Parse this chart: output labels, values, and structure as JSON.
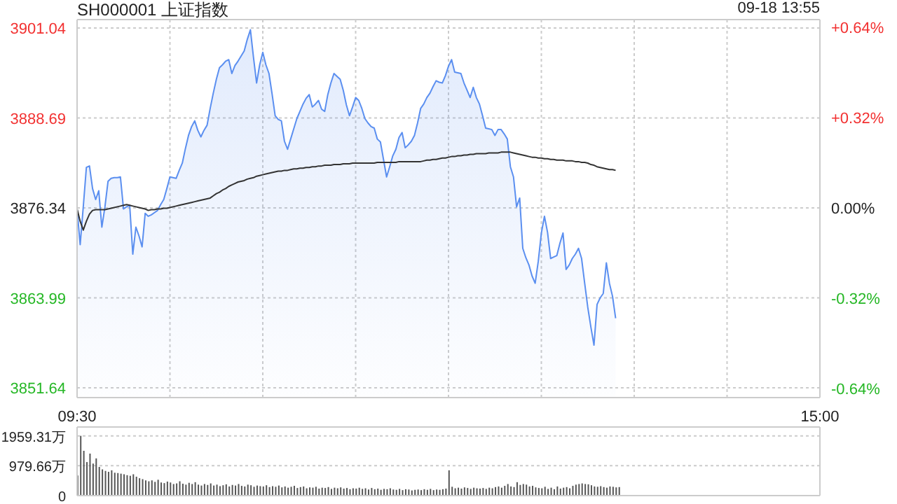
{
  "chart_data": [
    {
      "type": "area",
      "title": "SH000001 上证指数",
      "annotations": [
        "09-18 13:55"
      ],
      "grid": true,
      "categories": [
        "09:30",
        null,
        null,
        null,
        null,
        null,
        null,
        null,
        null,
        null,
        null,
        null,
        null,
        null,
        null,
        null,
        null,
        null,
        null,
        null,
        null,
        null,
        null,
        null,
        null,
        null,
        null,
        null,
        null,
        null,
        null,
        null,
        null,
        null,
        null,
        null,
        null,
        null,
        null,
        null,
        null,
        null,
        null,
        null,
        null,
        null,
        null,
        null,
        null,
        null,
        null,
        null,
        null,
        null,
        null,
        null,
        null,
        null,
        null,
        null,
        null,
        null,
        null,
        null,
        null,
        null,
        null,
        null,
        null,
        null,
        null,
        null,
        null,
        null,
        null,
        null,
        null,
        null,
        null,
        null,
        null,
        null,
        null,
        null,
        null,
        null,
        null,
        null,
        null,
        null,
        null,
        null,
        null,
        null,
        null,
        null,
        null,
        null,
        null,
        null,
        null,
        null,
        null,
        null,
        null,
        null,
        null,
        null,
        null,
        null,
        null,
        null,
        null,
        null,
        null,
        null,
        null,
        null,
        null,
        null,
        null,
        null,
        null,
        null,
        null,
        null,
        null,
        null,
        null,
        null,
        null,
        null,
        null,
        null,
        null,
        null,
        null,
        null,
        null,
        null,
        null,
        null,
        null,
        null,
        null,
        null,
        null,
        null,
        null,
        null,
        null,
        null,
        null,
        null,
        null,
        null,
        null,
        null,
        null,
        null,
        null,
        null,
        null,
        null,
        null,
        null,
        null,
        null,
        null,
        null,
        null,
        null,
        null,
        null,
        null,
        null,
        null,
        null,
        null,
        null,
        null,
        null,
        null,
        null,
        null,
        null,
        null,
        null,
        null,
        null,
        null,
        null,
        null,
        null,
        null,
        null,
        null,
        null,
        null,
        null,
        null,
        null,
        null,
        null,
        null,
        null,
        null,
        null,
        null,
        null,
        null,
        null,
        null,
        null,
        null,
        null,
        null,
        null,
        null,
        null,
        null,
        null,
        null,
        null,
        null,
        null,
        null,
        null,
        null,
        null,
        null,
        null,
        null,
        null,
        null,
        null,
        null,
        null,
        null,
        null,
        "15:00"
      ],
      "ylim": [
        3850.3,
        3902.2
      ],
      "yticks": [
        3851.64,
        3863.99,
        3876.34,
        3888.69,
        3901.04
      ],
      "y2lim": [
        -0.672,
        0.667
      ],
      "y2ticks": [
        {
          "value": -0.64,
          "label": "-0.64%"
        },
        {
          "value": -0.32,
          "label": "-0.32%"
        },
        {
          "value": 0,
          "label": "0.00%"
        },
        {
          "value": 0.32,
          "label": "+0.32%"
        },
        {
          "value": 0.64,
          "label": "+0.64%"
        }
      ],
      "series": [
        {
          "color": "#5b8ff0",
          "values": [
            3876.2,
            3871.3,
            3876.5,
            3881.9,
            3882.1,
            3879,
            3877.5,
            3878.7,
            3873.7,
            3876.5,
            3880.0,
            3880.4,
            3880.5,
            3880.5,
            3880.6,
            3876.2,
            3876.5,
            3876.7,
            3870.0,
            3873.7,
            3872.5,
            3871.0,
            3875.6,
            3875.2,
            3875.4,
            3875.7,
            3876.0,
            3876.8,
            3877.5,
            3879,
            3880.6,
            3880.5,
            3880.4,
            3881.5,
            3882.5,
            3884.5,
            3886.3,
            3887.5,
            3888.3,
            3887,
            3886.1,
            3887,
            3887.7,
            3890,
            3892.1,
            3894,
            3895.6,
            3896,
            3896.5,
            3896.7,
            3894.8,
            3895.9,
            3896.5,
            3897.2,
            3897.9,
            3899.5,
            3900.8,
            3897,
            3893.5,
            3896,
            3897.7,
            3896,
            3894.8,
            3892,
            3889.0,
            3888.5,
            3888.3,
            3885.5,
            3884.4,
            3885.8,
            3887.2,
            3888.6,
            3889.6,
            3890.6,
            3891.4,
            3891.9,
            3890.2,
            3890.6,
            3891.1,
            3889.9,
            3889.6,
            3891.9,
            3893.5,
            3894.8,
            3894.4,
            3894.0,
            3892.5,
            3890.5,
            3889.0,
            3890.2,
            3891.5,
            3891.1,
            3890,
            3888.6,
            3888,
            3887.5,
            3887.3,
            3885.8,
            3885.4,
            3883,
            3880.6,
            3882,
            3883.5,
            3884.4,
            3886,
            3886.7,
            3884.6,
            3885,
            3885.5,
            3886.3,
            3888,
            3890,
            3890.6,
            3891.5,
            3892.1,
            3893,
            3893.8,
            3893.6,
            3893.5,
            3894.5,
            3895.8,
            3896.7,
            3895.0,
            3894.9,
            3894.8,
            3893.5,
            3892.5,
            3891.5,
            3892.9,
            3891.5,
            3890.6,
            3889,
            3887.3,
            3887.2,
            3887.1,
            3886.3,
            3887.1,
            3887.1,
            3886.5,
            3885.8,
            3882,
            3880.6,
            3876.5,
            3877.7,
            3870.8,
            3869.5,
            3868.5,
            3867,
            3866.0,
            3869,
            3872.9,
            3875.2,
            3873,
            3869.4,
            3869.6,
            3869.8,
            3871.5,
            3872.9,
            3867.9,
            3868.5,
            3869.4,
            3870,
            3870.8,
            3869.4,
            3866,
            3862.7,
            3860,
            3857.5,
            3863.1,
            3864,
            3864.6,
            3868.8,
            3866,
            3864.2,
            3861.2,
            null,
            null,
            null,
            null,
            null,
            null,
            null,
            null,
            null,
            null,
            null,
            null,
            null,
            null,
            null,
            null,
            null,
            null,
            null,
            null,
            null,
            null,
            null,
            null,
            null,
            null,
            null,
            null,
            null,
            null,
            null,
            null,
            null,
            null,
            null,
            null,
            null,
            null,
            null,
            null,
            null,
            null,
            null,
            null,
            null,
            null,
            null,
            null,
            null,
            null,
            null,
            null,
            null,
            null,
            null,
            null,
            null,
            null,
            null,
            null,
            null,
            null,
            null,
            null,
            null,
            null
          ]
        },
        {
          "type": "line",
          "color": "#333333",
          "values": [
            3876.2,
            3874.5,
            3873.3,
            3874.5,
            3875.5,
            3876.0,
            3876.1,
            3876.1,
            3876.1,
            3876.1,
            3876.2,
            3876.3,
            3876.4,
            3876.5,
            3876.6,
            3876.7,
            3876.8,
            3876.7,
            3876.6,
            3876.5,
            3876.4,
            3876.3,
            3876.2,
            3876.0,
            3876.1,
            3876.1,
            3876.2,
            3876.2,
            3876.3,
            3876.3,
            3876.4,
            3876.5,
            3876.6,
            3876.7,
            3876.8,
            3876.9,
            3877.0,
            3877.1,
            3877.2,
            3877.3,
            3877.4,
            3877.5,
            3877.6,
            3877.7,
            3878.0,
            3878.3,
            3878.5,
            3878.8,
            3879.0,
            3879.3,
            3879.5,
            3879.7,
            3879.9,
            3880.0,
            3880.1,
            3880.3,
            3880.4,
            3880.5,
            3880.7,
            3880.8,
            3880.9,
            3881.0,
            3881.1,
            3881.2,
            3881.3,
            3881.4,
            3881.4,
            3881.5,
            3881.5,
            3881.6,
            3881.7,
            3881.7,
            3881.8,
            3881.8,
            3881.9,
            3881.9,
            3882.0,
            3882.0,
            3882.1,
            3882.1,
            3882.2,
            3882.2,
            3882.2,
            3882.3,
            3882.3,
            3882.3,
            3882.4,
            3882.4,
            3882.4,
            3882.5,
            3882.5,
            3882.5,
            3882.5,
            3882.5,
            3882.5,
            3882.5,
            3882.5,
            3882.6,
            3882.6,
            3882.6,
            3882.6,
            3882.6,
            3882.6,
            3882.6,
            3882.7,
            3882.7,
            3882.7,
            3882.7,
            3882.7,
            3882.7,
            3882.7,
            3882.7,
            3882.8,
            3882.9,
            3882.9,
            3883.0,
            3883.0,
            3883.1,
            3883.2,
            3883.2,
            3883.3,
            3883.4,
            3883.4,
            3883.5,
            3883.5,
            3883.6,
            3883.6,
            3883.7,
            3883.7,
            3883.8,
            3883.8,
            3883.8,
            3883.8,
            3883.9,
            3883.9,
            3883.9,
            3883.9,
            3884.0,
            3884.0,
            3884.0,
            3884.0,
            3883.9,
            3883.8,
            3883.7,
            3883.6,
            3883.5,
            3883.4,
            3883.3,
            3883.3,
            3883.2,
            3883.2,
            3883.1,
            3883.1,
            3883.0,
            3883.0,
            3882.9,
            3882.9,
            3882.9,
            3882.8,
            3882.8,
            3882.8,
            3882.7,
            3882.7,
            3882.6,
            3882.6,
            3882.5,
            3882.3,
            3882.2,
            3882.0,
            3881.9,
            3881.8,
            3881.7,
            3881.6,
            3881.6,
            3881.5,
            null,
            null,
            null,
            null,
            null,
            null,
            null,
            null,
            null,
            null,
            null,
            null,
            null,
            null,
            null,
            null,
            null,
            null,
            null,
            null,
            null,
            null,
            null,
            null,
            null,
            null,
            null,
            null,
            null,
            null,
            null,
            null,
            null,
            null,
            null,
            null,
            null,
            null,
            null,
            null,
            null,
            null,
            null,
            null,
            null,
            null,
            null,
            null,
            null,
            null,
            null,
            null,
            null,
            null,
            null,
            null,
            null,
            null,
            null,
            null,
            null,
            null,
            null,
            null,
            null,
            null
          ]
        }
      ]
    },
    {
      "type": "bar",
      "grid": "y",
      "tick_labels": "y",
      "ylim": [
        0,
        2250
      ],
      "categories": [
        null,
        null,
        null,
        null,
        null,
        null,
        null,
        null,
        null,
        null,
        null,
        null,
        null,
        null,
        null,
        null,
        null,
        null,
        null,
        null,
        null,
        null,
        null,
        null,
        null,
        null,
        null,
        null,
        null,
        null,
        null,
        null,
        null,
        null,
        null,
        null,
        null,
        null,
        null,
        null,
        null,
        null,
        null,
        null,
        null,
        null,
        null,
        null,
        null,
        null,
        null,
        null,
        null,
        null,
        null,
        null,
        null,
        null,
        null,
        null,
        null,
        null,
        null,
        null,
        null,
        null,
        null,
        null,
        null,
        null,
        null,
        null,
        null,
        null,
        null,
        null,
        null,
        null,
        null,
        null,
        null,
        null,
        null,
        null,
        null,
        null,
        null,
        null,
        null,
        null,
        null,
        null,
        null,
        null,
        null,
        null,
        null,
        null,
        null,
        null,
        null,
        null,
        null,
        null,
        null,
        null,
        null,
        null,
        null,
        null,
        null,
        null,
        null,
        null,
        null,
        null,
        null,
        null,
        null,
        null,
        null,
        null,
        null,
        null,
        null,
        null,
        null,
        null,
        null,
        null,
        null,
        null,
        null,
        null,
        null,
        null,
        null,
        null,
        null,
        null,
        null,
        null,
        null,
        null,
        null,
        null,
        null,
        null,
        null,
        null,
        null,
        null,
        null,
        null,
        null,
        null,
        null,
        null,
        null,
        null,
        null,
        null,
        null,
        null,
        null,
        null,
        null,
        null,
        null,
        null,
        null,
        null,
        null,
        null,
        null,
        null,
        null,
        null,
        null,
        null,
        null,
        null,
        null,
        null,
        null,
        null,
        null,
        null,
        null,
        null,
        null,
        null,
        null,
        null,
        null,
        null,
        null,
        null,
        null,
        null,
        null,
        null,
        null,
        null,
        null,
        null,
        null,
        null,
        null,
        null,
        null,
        null,
        null,
        null,
        null,
        null,
        null,
        null,
        null,
        null,
        null,
        null,
        null,
        null,
        null,
        null,
        null,
        null,
        null,
        null,
        null,
        null,
        null,
        null,
        null,
        null,
        null,
        null,
        null,
        null,
        null
      ],
      "yticks": [
        {
          "value": 0,
          "label": "0"
        },
        {
          "value": 979.66,
          "label": "979.66万"
        },
        {
          "value": 1959.31,
          "label": "1959.31万"
        }
      ],
      "series": [
        {
          "color": "#555555",
          "values": [
            660,
            1960,
            1470,
            1100,
            1380,
            1050,
            1220,
            940,
            860,
            810,
            780,
            830,
            750,
            740,
            720,
            700,
            670,
            650,
            700,
            620,
            570,
            540,
            500,
            470,
            500,
            450,
            520,
            430,
            410,
            460,
            430,
            380,
            400,
            470,
            390,
            360,
            420,
            380,
            440,
            360,
            330,
            380,
            350,
            400,
            330,
            360,
            310,
            340,
            370,
            300,
            350,
            330,
            380,
            320,
            300,
            360,
            340,
            290,
            330,
            310,
            300,
            340,
            280,
            310,
            290,
            330,
            270,
            300,
            260,
            290,
            320,
            250,
            280,
            300,
            240,
            270,
            260,
            290,
            230,
            260,
            250,
            280,
            220,
            260,
            240,
            270,
            230,
            250,
            210,
            240,
            230,
            260,
            220,
            240,
            200,
            250,
            210,
            230,
            190,
            220,
            210,
            240,
            200,
            190,
            220,
            180,
            210,
            200,
            170,
            190,
            200,
            180,
            210,
            190,
            220,
            180,
            200,
            190,
            210,
            230,
            830,
            290,
            240,
            260,
            230,
            270,
            250,
            220,
            260,
            240,
            230,
            250,
            220,
            260,
            240,
            280,
            300,
            260,
            320,
            380,
            300,
            280,
            440,
            350,
            380,
            360,
            300,
            320,
            270,
            250,
            240,
            290,
            220,
            260,
            210,
            300,
            230,
            260,
            280,
            240,
            320,
            360,
            380,
            400,
            380,
            370,
            340,
            300,
            290,
            310,
            280,
            260,
            300,
            290,
            270,
            280,
            null,
            null,
            null,
            null,
            null,
            null,
            null,
            null,
            null,
            null,
            null,
            null,
            null,
            null,
            null,
            null,
            null,
            null,
            null,
            null,
            null,
            null,
            null,
            null,
            null,
            null,
            null,
            null,
            null,
            null,
            null,
            null,
            null,
            null,
            null,
            null,
            null,
            null,
            null,
            null,
            null,
            null,
            null,
            null,
            null,
            null,
            null,
            null,
            null,
            null,
            null,
            null,
            null,
            null,
            null,
            null,
            null,
            null,
            null,
            null,
            null,
            null,
            null,
            null,
            null
          ]
        }
      ]
    }
  ]
}
